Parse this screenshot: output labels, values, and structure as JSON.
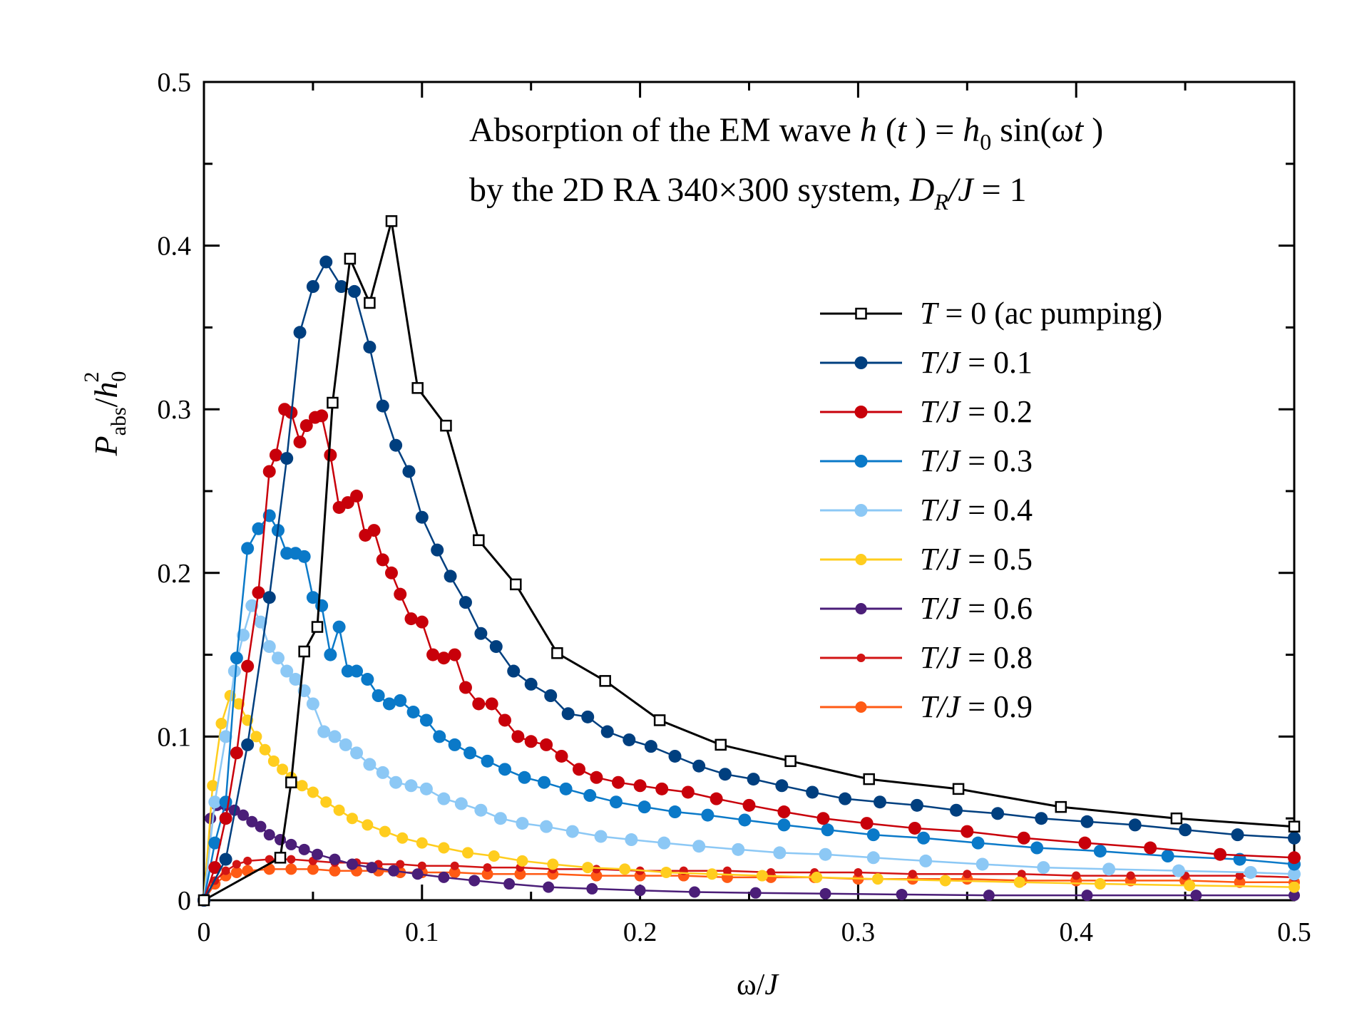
{
  "chart_data": {
    "type": "line",
    "title_line1": {
      "pre": "Absorption of the EM wave ",
      "h": "h",
      "open": " (",
      "t": "t",
      "mid": " ) = ",
      "h0": "h",
      "sub0": "0",
      "sin": " sin(ω",
      "t2": "t",
      "close": " )"
    },
    "title_line2": {
      "pre": "by the 2D RA 340×300 system, ",
      "D": "D",
      "subR": "R",
      "slashJ": "/J",
      "eq": " = 1"
    },
    "xlabel": {
      "omega": "ω/",
      "J": "J"
    },
    "ylabel": {
      "P": "P",
      "abs": "abs",
      "slash": "/",
      "h": "h",
      "sub0": "0",
      "sup2": "2"
    },
    "xlim": [
      0,
      0.5
    ],
    "ylim": [
      0,
      0.5
    ],
    "xticks": [
      "0",
      "0.1",
      "0.2",
      "0.3",
      "0.4",
      "0.5"
    ],
    "yticks": [
      "0",
      "0.1",
      "0.2",
      "0.3",
      "0.4",
      "0.5"
    ],
    "legend_position": "upper-right",
    "series": [
      {
        "id": "t0",
        "legend_var": "T",
        "legend_rest": " = 0 (ac pumping)",
        "color": "#000000",
        "marker": "square",
        "x": [
          0.0,
          0.035,
          0.04,
          0.046,
          0.052,
          0.059,
          0.067,
          0.076,
          0.086,
          0.098,
          0.111,
          0.126,
          0.143,
          0.162,
          0.184,
          0.209,
          0.237,
          0.269,
          0.305,
          0.346,
          0.393,
          0.446,
          0.5
        ],
        "y": [
          0.0,
          0.026,
          0.072,
          0.152,
          0.167,
          0.304,
          0.392,
          0.365,
          0.415,
          0.313,
          0.29,
          0.22,
          0.193,
          0.151,
          0.134,
          0.11,
          0.095,
          0.085,
          0.074,
          0.068,
          0.057,
          0.05,
          0.045
        ]
      },
      {
        "id": "t01",
        "legend_var": "T/J",
        "legend_rest": " = 0.1",
        "color": "#003f7f",
        "marker": "dot-large",
        "x": [
          0.0,
          0.01,
          0.02,
          0.03,
          0.038,
          0.044,
          0.05,
          0.056,
          0.063,
          0.069,
          0.076,
          0.082,
          0.088,
          0.094,
          0.1,
          0.107,
          0.113,
          0.12,
          0.127,
          0.134,
          0.142,
          0.15,
          0.159,
          0.167,
          0.176,
          0.185,
          0.195,
          0.205,
          0.216,
          0.227,
          0.239,
          0.252,
          0.265,
          0.279,
          0.294,
          0.31,
          0.327,
          0.345,
          0.364,
          0.384,
          0.405,
          0.427,
          0.45,
          0.474,
          0.5
        ],
        "y": [
          0.0,
          0.025,
          0.095,
          0.185,
          0.27,
          0.347,
          0.375,
          0.39,
          0.375,
          0.372,
          0.338,
          0.302,
          0.278,
          0.262,
          0.234,
          0.214,
          0.198,
          0.182,
          0.163,
          0.155,
          0.14,
          0.132,
          0.125,
          0.114,
          0.112,
          0.103,
          0.098,
          0.094,
          0.088,
          0.082,
          0.077,
          0.074,
          0.07,
          0.066,
          0.062,
          0.06,
          0.058,
          0.055,
          0.053,
          0.05,
          0.048,
          0.046,
          0.043,
          0.04,
          0.038
        ]
      },
      {
        "id": "t02",
        "legend_var": "T/J",
        "legend_rest": " = 0.2",
        "color": "#c8000a",
        "marker": "dot-large",
        "x": [
          0.0,
          0.005,
          0.01,
          0.015,
          0.02,
          0.025,
          0.03,
          0.033,
          0.037,
          0.04,
          0.044,
          0.047,
          0.051,
          0.054,
          0.058,
          0.062,
          0.066,
          0.07,
          0.074,
          0.078,
          0.082,
          0.086,
          0.09,
          0.095,
          0.1,
          0.105,
          0.11,
          0.115,
          0.12,
          0.126,
          0.132,
          0.138,
          0.144,
          0.15,
          0.157,
          0.164,
          0.172,
          0.18,
          0.19,
          0.2,
          0.21,
          0.222,
          0.235,
          0.25,
          0.266,
          0.284,
          0.304,
          0.326,
          0.35,
          0.376,
          0.404,
          0.434,
          0.466,
          0.5
        ],
        "y": [
          0.0,
          0.02,
          0.05,
          0.09,
          0.143,
          0.188,
          0.262,
          0.272,
          0.3,
          0.298,
          0.28,
          0.29,
          0.295,
          0.296,
          0.272,
          0.24,
          0.243,
          0.247,
          0.223,
          0.226,
          0.208,
          0.2,
          0.187,
          0.172,
          0.17,
          0.15,
          0.148,
          0.15,
          0.13,
          0.12,
          0.12,
          0.11,
          0.1,
          0.097,
          0.095,
          0.088,
          0.08,
          0.075,
          0.072,
          0.07,
          0.068,
          0.066,
          0.062,
          0.058,
          0.054,
          0.05,
          0.047,
          0.044,
          0.042,
          0.038,
          0.035,
          0.032,
          0.028,
          0.026
        ]
      },
      {
        "id": "t03",
        "legend_var": "T/J",
        "legend_rest": " = 0.3",
        "color": "#0a79c8",
        "marker": "dot-large",
        "x": [
          0.0,
          0.005,
          0.01,
          0.015,
          0.02,
          0.025,
          0.03,
          0.034,
          0.038,
          0.042,
          0.046,
          0.05,
          0.054,
          0.058,
          0.062,
          0.066,
          0.07,
          0.075,
          0.08,
          0.085,
          0.09,
          0.096,
          0.102,
          0.108,
          0.115,
          0.122,
          0.13,
          0.138,
          0.147,
          0.156,
          0.166,
          0.177,
          0.189,
          0.202,
          0.216,
          0.231,
          0.248,
          0.266,
          0.286,
          0.307,
          0.33,
          0.355,
          0.382,
          0.411,
          0.442,
          0.475,
          0.5
        ],
        "y": [
          0.0,
          0.035,
          0.06,
          0.148,
          0.215,
          0.227,
          0.235,
          0.226,
          0.212,
          0.212,
          0.21,
          0.185,
          0.18,
          0.15,
          0.167,
          0.14,
          0.14,
          0.135,
          0.125,
          0.12,
          0.122,
          0.115,
          0.11,
          0.1,
          0.095,
          0.09,
          0.085,
          0.08,
          0.075,
          0.072,
          0.068,
          0.064,
          0.06,
          0.057,
          0.054,
          0.052,
          0.049,
          0.046,
          0.043,
          0.04,
          0.038,
          0.035,
          0.032,
          0.03,
          0.027,
          0.025,
          0.022
        ]
      },
      {
        "id": "t04",
        "legend_var": "T/J",
        "legend_rest": " = 0.4",
        "color": "#8cc8f5",
        "marker": "dot-large",
        "x": [
          0.0,
          0.005,
          0.01,
          0.014,
          0.018,
          0.022,
          0.026,
          0.03,
          0.034,
          0.038,
          0.042,
          0.046,
          0.05,
          0.055,
          0.06,
          0.065,
          0.07,
          0.076,
          0.082,
          0.088,
          0.095,
          0.102,
          0.11,
          0.118,
          0.127,
          0.136,
          0.146,
          0.157,
          0.169,
          0.182,
          0.196,
          0.211,
          0.227,
          0.245,
          0.264,
          0.285,
          0.307,
          0.331,
          0.357,
          0.385,
          0.415,
          0.447,
          0.48,
          0.5
        ],
        "y": [
          0.0,
          0.06,
          0.1,
          0.14,
          0.162,
          0.18,
          0.17,
          0.155,
          0.148,
          0.14,
          0.135,
          0.128,
          0.12,
          0.103,
          0.1,
          0.095,
          0.09,
          0.083,
          0.078,
          0.072,
          0.07,
          0.068,
          0.062,
          0.059,
          0.055,
          0.05,
          0.047,
          0.045,
          0.042,
          0.039,
          0.037,
          0.035,
          0.033,
          0.031,
          0.029,
          0.028,
          0.026,
          0.024,
          0.022,
          0.02,
          0.019,
          0.018,
          0.017,
          0.016
        ]
      },
      {
        "id": "t05",
        "legend_var": "T/J",
        "legend_rest": " = 0.5",
        "color": "#ffcd1e",
        "marker": "dot-medium",
        "x": [
          0.0,
          0.004,
          0.008,
          0.012,
          0.016,
          0.02,
          0.024,
          0.028,
          0.032,
          0.036,
          0.04,
          0.045,
          0.05,
          0.056,
          0.062,
          0.068,
          0.075,
          0.083,
          0.091,
          0.1,
          0.11,
          0.121,
          0.133,
          0.146,
          0.16,
          0.176,
          0.193,
          0.212,
          0.233,
          0.256,
          0.281,
          0.309,
          0.34,
          0.374,
          0.411,
          0.452,
          0.5
        ],
        "y": [
          0.0,
          0.07,
          0.108,
          0.125,
          0.12,
          0.11,
          0.1,
          0.092,
          0.085,
          0.08,
          0.075,
          0.07,
          0.066,
          0.06,
          0.055,
          0.05,
          0.046,
          0.042,
          0.038,
          0.035,
          0.032,
          0.029,
          0.027,
          0.024,
          0.022,
          0.02,
          0.019,
          0.017,
          0.016,
          0.015,
          0.014,
          0.013,
          0.012,
          0.011,
          0.01,
          0.009,
          0.008
        ]
      },
      {
        "id": "t06",
        "legend_var": "T/J",
        "legend_rest": " = 0.6",
        "color": "#4b1e78",
        "marker": "dot-medium",
        "x": [
          0.0,
          0.003,
          0.006,
          0.01,
          0.014,
          0.018,
          0.022,
          0.026,
          0.03,
          0.035,
          0.04,
          0.046,
          0.052,
          0.06,
          0.068,
          0.077,
          0.087,
          0.098,
          0.11,
          0.124,
          0.14,
          0.158,
          0.178,
          0.2,
          0.225,
          0.253,
          0.285,
          0.32,
          0.36,
          0.405,
          0.455,
          0.5
        ],
        "y": [
          0.0,
          0.05,
          0.058,
          0.058,
          0.055,
          0.052,
          0.048,
          0.045,
          0.04,
          0.037,
          0.034,
          0.031,
          0.028,
          0.025,
          0.022,
          0.02,
          0.018,
          0.016,
          0.014,
          0.012,
          0.01,
          0.008,
          0.007,
          0.006,
          0.005,
          0.0045,
          0.004,
          0.0035,
          0.003,
          0.003,
          0.003,
          0.003
        ]
      },
      {
        "id": "t08",
        "legend_var": "T/J",
        "legend_rest": " = 0.8",
        "color": "#d21414",
        "marker": "dot-small",
        "x": [
          0.0,
          0.005,
          0.01,
          0.015,
          0.02,
          0.03,
          0.04,
          0.05,
          0.06,
          0.07,
          0.08,
          0.09,
          0.1,
          0.115,
          0.13,
          0.145,
          0.16,
          0.18,
          0.2,
          0.22,
          0.24,
          0.26,
          0.28,
          0.3,
          0.325,
          0.35,
          0.375,
          0.4,
          0.425,
          0.45,
          0.475,
          0.5
        ],
        "y": [
          0.0,
          0.012,
          0.018,
          0.022,
          0.024,
          0.025,
          0.025,
          0.024,
          0.023,
          0.023,
          0.022,
          0.022,
          0.021,
          0.021,
          0.02,
          0.02,
          0.019,
          0.019,
          0.018,
          0.018,
          0.018,
          0.017,
          0.017,
          0.017,
          0.016,
          0.016,
          0.016,
          0.015,
          0.015,
          0.015,
          0.015,
          0.014
        ]
      },
      {
        "id": "t09",
        "legend_var": "T/J",
        "legend_rest": " = 0.9",
        "color": "#ff5a14",
        "marker": "dot-medium",
        "x": [
          0.0,
          0.005,
          0.01,
          0.015,
          0.02,
          0.03,
          0.04,
          0.05,
          0.06,
          0.07,
          0.08,
          0.09,
          0.1,
          0.115,
          0.13,
          0.145,
          0.16,
          0.18,
          0.2,
          0.22,
          0.24,
          0.26,
          0.28,
          0.3,
          0.325,
          0.35,
          0.375,
          0.4,
          0.425,
          0.45,
          0.475,
          0.5
        ],
        "y": [
          0.0,
          0.01,
          0.015,
          0.017,
          0.018,
          0.019,
          0.019,
          0.019,
          0.018,
          0.018,
          0.018,
          0.017,
          0.017,
          0.017,
          0.016,
          0.016,
          0.016,
          0.015,
          0.015,
          0.015,
          0.014,
          0.014,
          0.014,
          0.013,
          0.013,
          0.013,
          0.012,
          0.012,
          0.012,
          0.012,
          0.011,
          0.011
        ]
      }
    ]
  }
}
